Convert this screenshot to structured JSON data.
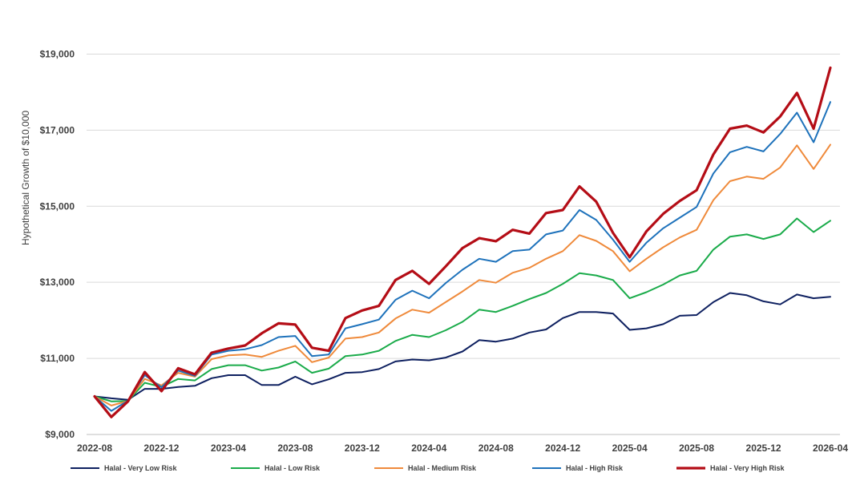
{
  "chart_data": {
    "type": "line",
    "ylabel": "Hypothetical Growth of $10,000",
    "xlabel": "",
    "ylim": [
      9000,
      20000
    ],
    "yticks": [
      {
        "value": 9000,
        "label": "$9,000"
      },
      {
        "value": 11000,
        "label": "$11,000"
      },
      {
        "value": 13000,
        "label": "$13,000"
      },
      {
        "value": 15000,
        "label": "$15,000"
      },
      {
        "value": 17000,
        "label": "$17,000"
      },
      {
        "value": 19000,
        "label": "$19,000"
      }
    ],
    "x": [
      "2022-08",
      "2022-09",
      "2022-10",
      "2022-11",
      "2022-12",
      "2023-01",
      "2023-02",
      "2023-03",
      "2023-04",
      "2023-05",
      "2023-06",
      "2023-07",
      "2023-08",
      "2023-09",
      "2023-10",
      "2023-11",
      "2023-12",
      "2024-01",
      "2024-02",
      "2024-03",
      "2024-04",
      "2024-05",
      "2024-06",
      "2024-07",
      "2024-08",
      "2024-09",
      "2024-10",
      "2024-11",
      "2024-12",
      "2025-01",
      "2025-02",
      "2025-03",
      "2025-04",
      "2025-05",
      "2025-06",
      "2025-07",
      "2025-08",
      "2025-09",
      "2025-10",
      "2025-11",
      "2025-12",
      "2026-01",
      "2026-02",
      "2026-03",
      "2026-04"
    ],
    "xticks": [
      "2022-08",
      "2022-12",
      "2023-04",
      "2023-08",
      "2023-12",
      "2024-04",
      "2024-08",
      "2024-12",
      "2025-04",
      "2025-08",
      "2025-12",
      "2026-04"
    ],
    "grid": "horizontal",
    "legend_position": "bottom",
    "series": [
      {
        "name": "Halal - Very Low Risk",
        "color": "#0e2060",
        "values": [
          10000,
          9950,
          9910,
          10200,
          10200,
          10250,
          10280,
          10480,
          10560,
          10560,
          10300,
          10300,
          10520,
          10320,
          10450,
          10620,
          10640,
          10720,
          10920,
          10970,
          10950,
          11020,
          11180,
          11480,
          11440,
          11520,
          11680,
          11760,
          12060,
          12220,
          12220,
          12180,
          11750,
          11790,
          11900,
          12120,
          12140,
          12480,
          12720,
          12660,
          12500,
          12420,
          12680,
          12580,
          12620
        ]
      },
      {
        "name": "Halal - Low Risk",
        "color": "#1aab4a",
        "values": [
          10000,
          9870,
          9880,
          10360,
          10250,
          10460,
          10420,
          10720,
          10820,
          10820,
          10680,
          10760,
          10920,
          10620,
          10730,
          11060,
          11100,
          11200,
          11460,
          11620,
          11560,
          11740,
          11960,
          12280,
          12220,
          12380,
          12560,
          12720,
          12960,
          13240,
          13180,
          13060,
          12580,
          12740,
          12940,
          13180,
          13300,
          13860,
          14200,
          14260,
          14140,
          14260,
          14680,
          14320,
          14620
        ]
      },
      {
        "name": "Halal - Medium Risk",
        "color": "#ef8a3b",
        "values": [
          10000,
          9760,
          9880,
          10460,
          10290,
          10620,
          10520,
          10980,
          11080,
          11100,
          11040,
          11200,
          11330,
          10900,
          11020,
          11520,
          11560,
          11680,
          12050,
          12280,
          12200,
          12480,
          12760,
          13060,
          12990,
          13250,
          13380,
          13620,
          13820,
          14240,
          14090,
          13820,
          13290,
          13620,
          13920,
          14180,
          14380,
          15160,
          15660,
          15780,
          15720,
          16020,
          16600,
          15980,
          16620
        ]
      },
      {
        "name": "Halal - High Risk",
        "color": "#1e72bb",
        "values": [
          10000,
          9620,
          9890,
          10560,
          10240,
          10680,
          10540,
          11100,
          11200,
          11240,
          11350,
          11560,
          11590,
          11060,
          11100,
          11790,
          11900,
          12020,
          12540,
          12780,
          12580,
          12980,
          13330,
          13620,
          13540,
          13820,
          13860,
          14260,
          14360,
          14900,
          14640,
          14120,
          13540,
          14040,
          14420,
          14700,
          14980,
          15860,
          16420,
          16560,
          16440,
          16900,
          17460,
          16680,
          17740
        ]
      },
      {
        "name": "Halal - Very High Risk",
        "color": "#b40d16",
        "values": [
          10000,
          9460,
          9870,
          10640,
          10140,
          10740,
          10580,
          11150,
          11260,
          11340,
          11660,
          11920,
          11890,
          11280,
          11200,
          12060,
          12260,
          12380,
          13060,
          13300,
          12960,
          13420,
          13900,
          14160,
          14080,
          14380,
          14280,
          14820,
          14900,
          15520,
          15120,
          14300,
          13660,
          14340,
          14800,
          15140,
          15420,
          16360,
          17040,
          17120,
          16940,
          17360,
          17980,
          17040,
          18640
        ]
      }
    ]
  }
}
